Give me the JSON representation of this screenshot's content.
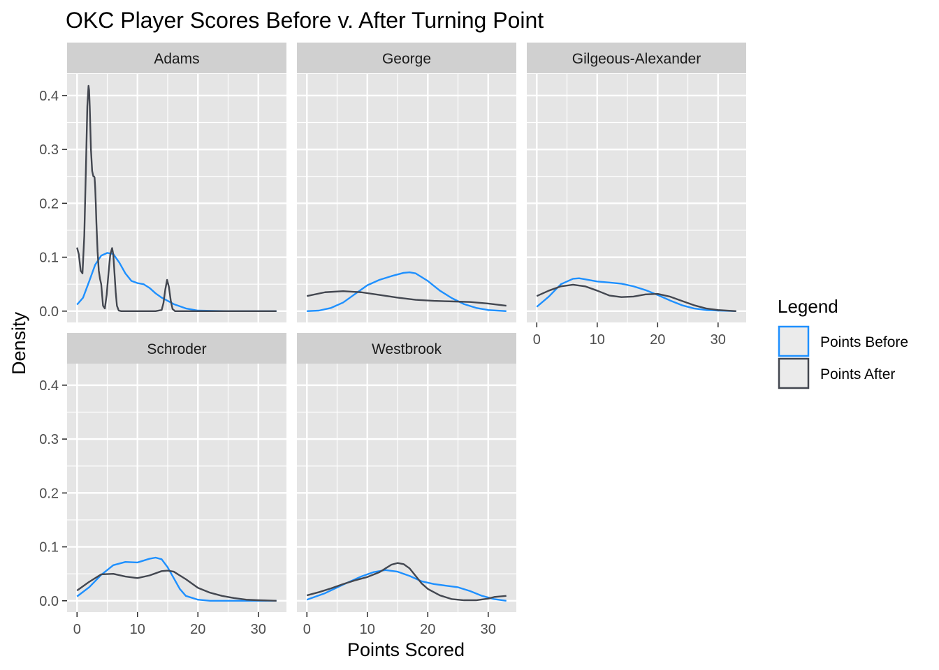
{
  "chart_data": {
    "type": "line",
    "title": "OKC Player Scores Before v. After Turning Point",
    "xlabel": "Points Scored",
    "ylabel": "Density",
    "xlim": [
      -1.65,
      34.65
    ],
    "ylim": [
      -0.021,
      0.44
    ],
    "x_ticks": [
      0,
      10,
      20,
      30
    ],
    "y_ticks": [
      0.0,
      0.1,
      0.2,
      0.3,
      0.4
    ],
    "y_tick_labels": [
      "0.0",
      "0.1",
      "0.2",
      "0.3",
      "0.4"
    ],
    "grid": true,
    "legend": {
      "title": "Legend",
      "position": "right",
      "entries": [
        {
          "label": "Points Before",
          "color": "#1E90FF"
        },
        {
          "label": "Points After",
          "color": "#434750"
        }
      ]
    },
    "colors": {
      "before": "#1E90FF",
      "after": "#434750",
      "panel_bg": "#E5E5E5",
      "strip_bg": "#D0D0D0",
      "grid": "#FFFFFF"
    },
    "panels": [
      {
        "title": "Adams",
        "series": [
          {
            "name": "Points Before",
            "x": [
              0,
              1,
              2,
              3,
              4,
              5,
              6,
              7,
              8,
              9,
              10,
              11,
              12,
              13,
              14,
              16,
              18,
              20,
              25,
              33
            ],
            "y": [
              0.012,
              0.025,
              0.055,
              0.086,
              0.103,
              0.108,
              0.106,
              0.09,
              0.07,
              0.056,
              0.052,
              0.05,
              0.043,
              0.033,
              0.025,
              0.013,
              0.005,
              0.001,
              0.0,
              0.0
            ]
          },
          {
            "name": "Points After",
            "x": [
              0,
              0.3,
              0.6,
              0.9,
              1.2,
              1.5,
              1.7,
              1.9,
              2.0,
              2.1,
              2.3,
              2.5,
              2.7,
              2.8,
              2.9,
              3.0,
              3.1,
              3.2,
              3.4,
              3.6,
              3.8,
              4.0,
              4.3,
              4.6,
              4.9,
              5.2,
              5.5,
              5.8,
              6.0,
              6.2,
              6.4,
              6.6,
              6.9,
              7.3,
              8,
              10,
              13,
              14,
              14.3,
              14.6,
              14.9,
              15.2,
              15.5,
              15.8,
              16.2,
              20,
              33
            ],
            "y": [
              0.118,
              0.105,
              0.075,
              0.07,
              0.14,
              0.28,
              0.38,
              0.418,
              0.41,
              0.38,
              0.3,
              0.26,
              0.25,
              0.25,
              0.248,
              0.23,
              0.2,
              0.165,
              0.11,
              0.075,
              0.06,
              0.05,
              0.01,
              0.005,
              0.03,
              0.07,
              0.105,
              0.117,
              0.105,
              0.07,
              0.035,
              0.01,
              0.001,
              0.0,
              0.0,
              0.0,
              0.0,
              0.002,
              0.015,
              0.04,
              0.058,
              0.045,
              0.02,
              0.004,
              0.0,
              0.0,
              0.0
            ]
          }
        ]
      },
      {
        "title": "George",
        "series": [
          {
            "name": "Points Before",
            "x": [
              0,
              2,
              4,
              6,
              8,
              10,
              12,
              14,
              16,
              17,
              18,
              20,
              22,
              24,
              26,
              28,
              30,
              33
            ],
            "y": [
              0.0,
              0.001,
              0.006,
              0.016,
              0.032,
              0.048,
              0.058,
              0.065,
              0.071,
              0.072,
              0.07,
              0.056,
              0.038,
              0.024,
              0.013,
              0.006,
              0.002,
              0.0
            ]
          },
          {
            "name": "Points After",
            "x": [
              0,
              3,
              6,
              9,
              12,
              15,
              18,
              21,
              24,
              27,
              30,
              33
            ],
            "y": [
              0.028,
              0.035,
              0.037,
              0.035,
              0.03,
              0.025,
              0.021,
              0.019,
              0.018,
              0.017,
              0.014,
              0.01
            ]
          }
        ]
      },
      {
        "title": "Gilgeous-Alexander",
        "series": [
          {
            "name": "Points Before",
            "x": [
              0,
              2,
              4,
              6,
              7,
              8,
              10,
              12,
              14,
              16,
              18,
              20,
              22,
              24,
              26,
              28,
              30,
              33
            ],
            "y": [
              0.008,
              0.027,
              0.05,
              0.06,
              0.061,
              0.059,
              0.055,
              0.053,
              0.051,
              0.046,
              0.039,
              0.03,
              0.02,
              0.011,
              0.005,
              0.002,
              0.001,
              0.0
            ]
          },
          {
            "name": "Points After",
            "x": [
              0,
              2,
              4,
              6,
              8,
              10,
              12,
              14,
              16,
              18,
              20,
              22,
              24,
              26,
              28,
              30,
              33
            ],
            "y": [
              0.028,
              0.038,
              0.046,
              0.049,
              0.046,
              0.038,
              0.029,
              0.026,
              0.027,
              0.031,
              0.032,
              0.027,
              0.019,
              0.011,
              0.005,
              0.002,
              0.0
            ]
          }
        ]
      },
      {
        "title": "Schroder",
        "series": [
          {
            "name": "Points Before",
            "x": [
              0,
              2,
              4,
              6,
              8,
              10,
              12,
              13,
              14,
              15,
              16,
              17,
              18,
              20,
              22,
              25,
              28,
              33
            ],
            "y": [
              0.008,
              0.025,
              0.048,
              0.066,
              0.072,
              0.071,
              0.078,
              0.08,
              0.077,
              0.062,
              0.042,
              0.022,
              0.009,
              0.002,
              0.0,
              0.0,
              0.0,
              0.0
            ]
          },
          {
            "name": "Points After",
            "x": [
              0,
              2,
              4,
              6,
              8,
              10,
              12,
              14,
              15,
              16,
              18,
              20,
              22,
              24,
              26,
              28,
              30,
              33
            ],
            "y": [
              0.019,
              0.035,
              0.049,
              0.05,
              0.045,
              0.042,
              0.047,
              0.055,
              0.056,
              0.054,
              0.04,
              0.024,
              0.015,
              0.009,
              0.005,
              0.002,
              0.001,
              0.0
            ]
          }
        ]
      },
      {
        "title": "Westbrook",
        "series": [
          {
            "name": "Points Before",
            "x": [
              0,
              3,
              6,
              9,
              11,
              13,
              15,
              17,
              19,
              21,
              23,
              25,
              27,
              29,
              31,
              33
            ],
            "y": [
              0.002,
              0.014,
              0.03,
              0.045,
              0.053,
              0.057,
              0.054,
              0.046,
              0.036,
              0.031,
              0.028,
              0.025,
              0.018,
              0.009,
              0.003,
              0.0
            ]
          },
          {
            "name": "Points After",
            "x": [
              0,
              2,
              4,
              6,
              8,
              10,
              12,
              13,
              14,
              15,
              16,
              17,
              18,
              19,
              20,
              22,
              24,
              26,
              28,
              30,
              31,
              33
            ],
            "y": [
              0.01,
              0.016,
              0.023,
              0.031,
              0.038,
              0.044,
              0.053,
              0.06,
              0.067,
              0.07,
              0.068,
              0.06,
              0.046,
              0.032,
              0.022,
              0.01,
              0.003,
              0.001,
              0.001,
              0.004,
              0.007,
              0.009
            ]
          }
        ]
      }
    ]
  }
}
